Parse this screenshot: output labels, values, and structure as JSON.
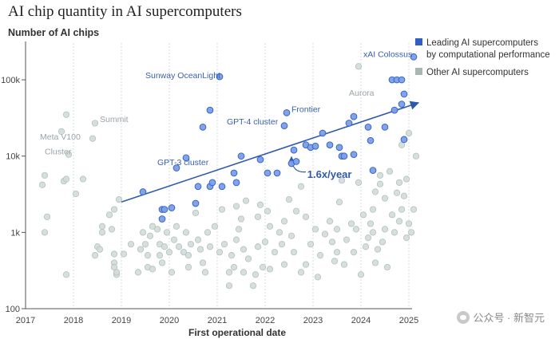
{
  "chart_data": {
    "type": "scatter",
    "title": "AI chip quantity in AI supercomputers",
    "ylabel": "Number of AI chips",
    "xlabel": "First operational date",
    "y_scale": "log",
    "ylim": [
      100,
      250000
    ],
    "xlim": [
      2017,
      2025.3
    ],
    "x_ticks": [
      "2017",
      "2018",
      "2019",
      "2020",
      "2021",
      "2022",
      "2023",
      "2024",
      "2025"
    ],
    "y_ticks": [
      {
        "value": 100,
        "label": "100"
      },
      {
        "value": 1000,
        "label": "1k"
      },
      {
        "value": 10000,
        "label": "10k"
      },
      {
        "value": 100000,
        "label": "100k"
      }
    ],
    "grid": "vertical",
    "legend_placement": "top-right",
    "legend": [
      {
        "label_line1": "Leading AI supercomputers",
        "label_line2": "by computational performance",
        "color": "#2f5fc4"
      },
      {
        "label_line1": "Other AI supercomputers",
        "label_line2": "",
        "color": "#a9b7b4"
      }
    ],
    "trend": {
      "label": "1.6x/year",
      "from": [
        2019,
        2500
      ],
      "to": [
        2025.2,
        50000
      ],
      "color": "#2f5aa8"
    },
    "annotations": [
      {
        "text": "xAI Colossus",
        "x": 2024.05,
        "y": 200000,
        "style": "blue"
      },
      {
        "text": "Sunway OceanLight",
        "x": 2019.5,
        "y": 105000,
        "style": "blue"
      },
      {
        "text": "Frontier",
        "x": 2022.55,
        "y": 38000,
        "style": "blue"
      },
      {
        "text": "GPT-4 cluster",
        "x": 2021.2,
        "y": 26000,
        "style": "blue"
      },
      {
        "text": "GPT-3 cluster",
        "x": 2019.75,
        "y": 7600,
        "style": "blue"
      },
      {
        "text": "Summit",
        "x": 2018.55,
        "y": 28000,
        "style": "gray"
      },
      {
        "text": "Meta V100",
        "x": 2017.3,
        "y": 16500,
        "style": "gray"
      },
      {
        "text": "Cluster",
        "x": 2017.4,
        "y": 10500,
        "style": "gray"
      },
      {
        "text": "Aurora",
        "x": 2023.75,
        "y": 62000,
        "style": "gray"
      }
    ],
    "series": [
      {
        "name": "Leading AI supercomputers by computational performance",
        "color": "#2f5fc4",
        "points": [
          [
            2019.45,
            3400
          ],
          [
            2019.85,
            1500
          ],
          [
            2019.85,
            2000
          ],
          [
            2019.9,
            2000
          ],
          [
            2020.05,
            2100
          ],
          [
            2020.15,
            7000
          ],
          [
            2020.35,
            9500
          ],
          [
            2020.55,
            2400
          ],
          [
            2020.6,
            4000
          ],
          [
            2020.7,
            24000
          ],
          [
            2020.85,
            4000
          ],
          [
            2020.85,
            40000
          ],
          [
            2020.9,
            4500
          ],
          [
            2021.05,
            110000
          ],
          [
            2021.1,
            4000
          ],
          [
            2021.35,
            6000
          ],
          [
            2021.4,
            4500
          ],
          [
            2021.5,
            10000
          ],
          [
            2021.9,
            9000
          ],
          [
            2022.05,
            6000
          ],
          [
            2022.25,
            6000
          ],
          [
            2022.4,
            25000
          ],
          [
            2022.45,
            37000
          ],
          [
            2022.55,
            8000
          ],
          [
            2022.6,
            12000
          ],
          [
            2022.65,
            8500
          ],
          [
            2022.85,
            14000
          ],
          [
            2022.95,
            13000
          ],
          [
            2023.05,
            13500
          ],
          [
            2023.2,
            20000
          ],
          [
            2023.35,
            14000
          ],
          [
            2023.55,
            13000
          ],
          [
            2023.6,
            10000
          ],
          [
            2023.65,
            10000
          ],
          [
            2023.75,
            27000
          ],
          [
            2023.85,
            33000
          ],
          [
            2023.85,
            10500
          ],
          [
            2024.15,
            24000
          ],
          [
            2024.2,
            16000
          ],
          [
            2024.25,
            6500
          ],
          [
            2024.5,
            24000
          ],
          [
            2024.65,
            100000
          ],
          [
            2024.7,
            40000
          ],
          [
            2024.75,
            100000
          ],
          [
            2024.85,
            100000
          ],
          [
            2024.85,
            48000
          ],
          [
            2024.9,
            65000
          ],
          [
            2024.9,
            16500
          ],
          [
            2025.1,
            200000
          ]
        ]
      },
      {
        "name": "Other AI supercomputers",
        "color": "#a9b7b4",
        "points": [
          [
            2017.35,
            4200
          ],
          [
            2017.4,
            5600
          ],
          [
            2017.45,
            1600
          ],
          [
            2017.4,
            1000
          ],
          [
            2017.75,
            21000
          ],
          [
            2017.8,
            4700
          ],
          [
            2017.85,
            35000
          ],
          [
            2017.85,
            5000
          ],
          [
            2017.9,
            10500
          ],
          [
            2017.85,
            280
          ],
          [
            2018.05,
            3200
          ],
          [
            2018.2,
            5000
          ],
          [
            2018.4,
            17000
          ],
          [
            2018.45,
            27000
          ],
          [
            2018.5,
            650
          ],
          [
            2018.45,
            500
          ],
          [
            2018.55,
            600
          ],
          [
            2018.6,
            1000
          ],
          [
            2018.6,
            1200
          ],
          [
            2018.75,
            1700
          ],
          [
            2018.85,
            2000
          ],
          [
            2018.85,
            400
          ],
          [
            2018.85,
            520
          ],
          [
            2018.9,
            280
          ],
          [
            2018.9,
            300
          ],
          [
            2018.85,
            350
          ],
          [
            2018.8,
            1100
          ],
          [
            2018.95,
            2700
          ],
          [
            2019.05,
            520
          ],
          [
            2019.2,
            700
          ],
          [
            2019.35,
            300
          ],
          [
            2019.4,
            600
          ],
          [
            2019.45,
            1000
          ],
          [
            2019.5,
            700
          ],
          [
            2019.55,
            500
          ],
          [
            2019.55,
            350
          ],
          [
            2019.6,
            900
          ],
          [
            2019.65,
            1200
          ],
          [
            2019.65,
            330
          ],
          [
            2019.75,
            1100
          ],
          [
            2019.8,
            700
          ],
          [
            2019.8,
            500
          ],
          [
            2019.85,
            400
          ],
          [
            2019.9,
            650
          ],
          [
            2019.95,
            1000
          ],
          [
            2020.0,
            550
          ],
          [
            2020.05,
            300
          ],
          [
            2020.1,
            800
          ],
          [
            2020.15,
            1200
          ],
          [
            2020.2,
            650
          ],
          [
            2020.3,
            550
          ],
          [
            2020.35,
            1000
          ],
          [
            2020.4,
            500
          ],
          [
            2020.45,
            700
          ],
          [
            2020.4,
            350
          ],
          [
            2020.55,
            1800
          ],
          [
            2020.6,
            800
          ],
          [
            2020.65,
            600
          ],
          [
            2020.7,
            400
          ],
          [
            2020.75,
            300
          ],
          [
            2020.8,
            1000
          ],
          [
            2020.85,
            650
          ],
          [
            2020.95,
            1200
          ],
          [
            2021.05,
            550
          ],
          [
            2021.1,
            2000
          ],
          [
            2021.15,
            700
          ],
          [
            2021.25,
            300
          ],
          [
            2021.25,
            200
          ],
          [
            2021.3,
            500
          ],
          [
            2021.35,
            350
          ],
          [
            2021.4,
            800
          ],
          [
            2021.45,
            1100
          ],
          [
            2021.4,
            2200
          ],
          [
            2021.5,
            1500
          ],
          [
            2021.55,
            300
          ],
          [
            2021.55,
            600
          ],
          [
            2021.6,
            2600
          ],
          [
            2021.65,
            450
          ],
          [
            2021.75,
            200
          ],
          [
            2021.8,
            280
          ],
          [
            2021.85,
            650
          ],
          [
            2021.85,
            1600
          ],
          [
            2021.9,
            2300
          ],
          [
            2021.95,
            350
          ],
          [
            2022.0,
            750
          ],
          [
            2022.05,
            1900
          ],
          [
            2022.1,
            330
          ],
          [
            2022.1,
            1200
          ],
          [
            2022.2,
            550
          ],
          [
            2022.3,
            1000
          ],
          [
            2022.35,
            700
          ],
          [
            2022.4,
            380
          ],
          [
            2022.4,
            1400
          ],
          [
            2022.5,
            2700
          ],
          [
            2022.55,
            900
          ],
          [
            2022.6,
            550
          ],
          [
            2022.65,
            1900
          ],
          [
            2022.75,
            300
          ],
          [
            2022.75,
            4000
          ],
          [
            2022.85,
            1600
          ],
          [
            2022.85,
            380
          ],
          [
            2022.95,
            700
          ],
          [
            2023.05,
            1100
          ],
          [
            2023.1,
            260
          ],
          [
            2023.15,
            500
          ],
          [
            2023.25,
            950
          ],
          [
            2023.35,
            1400
          ],
          [
            2023.4,
            750
          ],
          [
            2023.45,
            420
          ],
          [
            2023.5,
            550
          ],
          [
            2023.5,
            1100
          ],
          [
            2023.55,
            2500
          ],
          [
            2023.65,
            380
          ],
          [
            2023.7,
            800
          ],
          [
            2023.8,
            1300
          ],
          [
            2023.85,
            550
          ],
          [
            2023.9,
            1100
          ],
          [
            2023.95,
            4500
          ],
          [
            2024.0,
            280
          ],
          [
            2024.05,
            1700
          ],
          [
            2024.1,
            650
          ],
          [
            2024.15,
            850
          ],
          [
            2024.2,
            1300
          ],
          [
            2024.25,
            2000
          ],
          [
            2024.3,
            400
          ],
          [
            2024.35,
            600
          ],
          [
            2024.4,
            4300
          ],
          [
            2024.45,
            750
          ],
          [
            2024.5,
            1100
          ],
          [
            2024.5,
            2800
          ],
          [
            2024.55,
            350
          ],
          [
            2024.6,
            6300
          ],
          [
            2024.65,
            1700
          ],
          [
            2024.7,
            1000
          ],
          [
            2024.75,
            3300
          ],
          [
            2024.8,
            4500
          ],
          [
            2024.8,
            1400
          ],
          [
            2024.85,
            14000
          ],
          [
            2024.85,
            2000
          ],
          [
            2024.9,
            3000
          ],
          [
            2024.95,
            850
          ],
          [
            2025.0,
            20000
          ],
          [
            2025.05,
            1000
          ],
          [
            2025.1,
            2000
          ],
          [
            2025.15,
            10000
          ],
          [
            2024.25,
            1000
          ],
          [
            2024.4,
            5600
          ],
          [
            2024.3,
            3400
          ],
          [
            2023.95,
            150000
          ],
          [
            2023.6,
            4800
          ],
          [
            2024.95,
            5000
          ],
          [
            2025.0,
            1300
          ]
        ]
      }
    ]
  }
}
